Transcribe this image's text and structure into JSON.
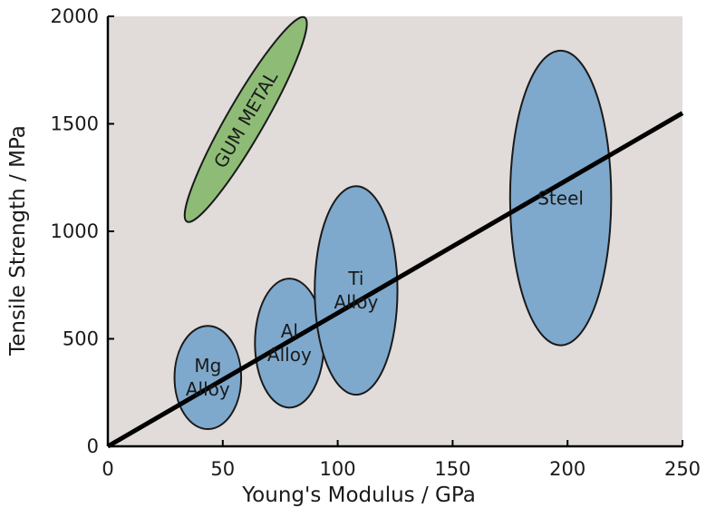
{
  "chart_data": {
    "type": "scatter",
    "title": "",
    "xlabel": "Young's Modulus / GPa",
    "ylabel": "Tensile Strength / MPa",
    "xlim": [
      0,
      250
    ],
    "ylim": [
      0,
      2000
    ],
    "xticks": [
      "0",
      "50",
      "100",
      "150",
      "200",
      "250"
    ],
    "yticks": [
      "0",
      "500",
      "1000",
      "1500",
      "2000"
    ],
    "grid": false,
    "legend": "none",
    "background_color": "#e1dcd9",
    "trend_line": {
      "x": [
        0,
        250
      ],
      "y": [
        0,
        1550
      ],
      "color": "#000000"
    },
    "regions": [
      {
        "name": "Mg Alloy",
        "label_lines": [
          "Mg",
          "Alloy"
        ],
        "x_range": [
          29,
          58
        ],
        "y_range": [
          80,
          560
        ],
        "angle": 0,
        "color": "#7ea9cc"
      },
      {
        "name": "Al Alloy",
        "label_lines": [
          "Al",
          "Alloy"
        ],
        "x_range": [
          64,
          94
        ],
        "y_range": [
          180,
          780
        ],
        "angle": 0,
        "color": "#7ea9cc"
      },
      {
        "name": "Ti Alloy",
        "label_lines": [
          "Ti",
          "Alloy"
        ],
        "x_range": [
          90,
          126
        ],
        "y_range": [
          240,
          1210
        ],
        "angle": 0,
        "color": "#7ea9cc"
      },
      {
        "name": "Steel",
        "label_lines": [
          "Steel"
        ],
        "x_range": [
          175,
          219
        ],
        "y_range": [
          470,
          1840
        ],
        "angle": 0,
        "color": "#7ea9cc"
      },
      {
        "name": "GUM METAL",
        "label_lines": [
          "GUM METAL"
        ],
        "center": [
          60,
          1520
        ],
        "diameter_along_major": [
          42,
          1000
        ],
        "diameter_along_minor": [
          13,
          104
        ],
        "angle": -60,
        "color": "#8ebc76"
      }
    ]
  }
}
